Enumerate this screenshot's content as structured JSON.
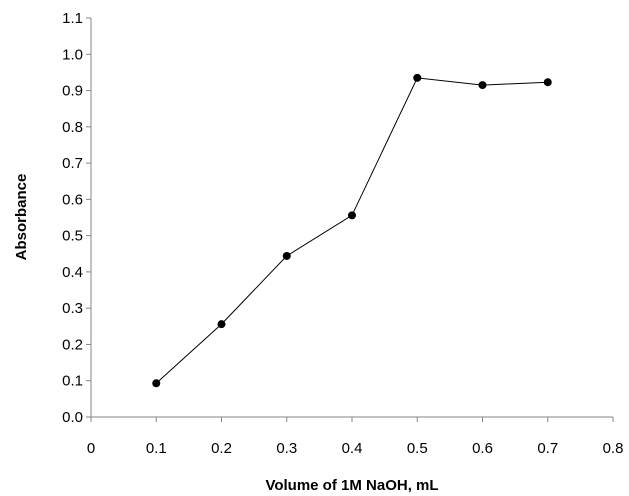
{
  "chart_data": {
    "type": "line",
    "title": "",
    "xlabel": "Volume of 1M NaOH, mL",
    "ylabel": "Absorbance",
    "xlim": [
      0,
      0.8
    ],
    "ylim": [
      0,
      1.1
    ],
    "x_ticks": [
      "0",
      "0.1",
      "0.2",
      "0.3",
      "0.4",
      "0.5",
      "0.6",
      "0.7",
      "0.8"
    ],
    "y_ticks": [
      "0.0",
      "0.1",
      "0.2",
      "0.3",
      "0.4",
      "0.5",
      "0.6",
      "0.7",
      "0.8",
      "0.9",
      "1.0",
      "1.1"
    ],
    "grid": false,
    "legend": "none",
    "series": [
      {
        "x": [
          0.1,
          0.2,
          0.3,
          0.4,
          0.5,
          0.6,
          0.7
        ],
        "y": [
          0.093,
          0.256,
          0.444,
          0.556,
          0.935,
          0.915,
          0.923
        ],
        "color": "#000000",
        "marker": "circle"
      }
    ]
  }
}
